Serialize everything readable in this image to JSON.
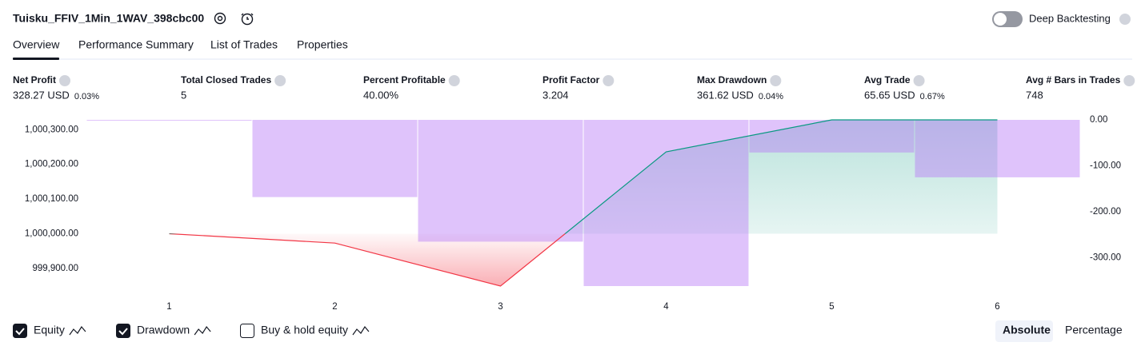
{
  "header": {
    "title": "Tuisku_FFIV_1Min_1WAV_398cbc00",
    "toggle_label": "Deep Backtesting"
  },
  "tabs": [
    "Overview",
    "Performance Summary",
    "List of Trades",
    "Properties"
  ],
  "metrics": [
    {
      "label": "Net Profit",
      "value": "328.27 USD",
      "extra": "0.03%",
      "tone": "green"
    },
    {
      "label": "Total Closed Trades",
      "value": "5",
      "tone": "plain"
    },
    {
      "label": "Percent Profitable",
      "value": "40.00%",
      "tone": "green"
    },
    {
      "label": "Profit Factor",
      "value": "3.204",
      "tone": "green"
    },
    {
      "label": "Max Drawdown",
      "value": "361.62 USD",
      "extra": "0.04%",
      "tone": "red"
    },
    {
      "label": "Avg Trade",
      "value": "65.65 USD",
      "extra": "0.67%",
      "tone": "green"
    },
    {
      "label": "Avg # Bars in Trades",
      "value": "748",
      "tone": "plain"
    }
  ],
  "chart_data": {
    "type": "line",
    "categories": [
      "1",
      "2",
      "3",
      "4",
      "5",
      "6"
    ],
    "series": [
      {
        "name": "Equity",
        "color": "#089981",
        "color_below": "#f23645",
        "baseline": 1000000,
        "values": [
          1000000,
          999973,
          999849,
          1000236,
          1000328.27,
          1000328.27
        ]
      },
      {
        "name": "Drawdown",
        "type": "bar",
        "axis": "y2",
        "color": "#b77bf6",
        "values": [
          0,
          -168,
          -265,
          -361.62,
          -71,
          -125
        ]
      }
    ],
    "ylim": [
      999849,
      1000328.27
    ],
    "yticks": [
      {
        "value": 1000300,
        "label": "1,000,300.00"
      },
      {
        "value": 1000200,
        "label": "1,000,200.00"
      },
      {
        "value": 1000100,
        "label": "1,000,100.00"
      },
      {
        "value": 1000000,
        "label": "1,000,000.00"
      },
      {
        "value": 999900,
        "label": "999,900.00"
      }
    ],
    "y2lim": [
      -361.62,
      0
    ],
    "y2ticks": [
      {
        "value": 0,
        "label": "0.00"
      },
      {
        "value": -100,
        "label": "-100.00"
      },
      {
        "value": -200,
        "label": "-200.00"
      },
      {
        "value": -300,
        "label": "-300.00"
      }
    ]
  },
  "options": [
    {
      "label": "Equity",
      "checked": true
    },
    {
      "label": "Drawdown",
      "checked": true
    },
    {
      "label": "Buy & hold equity",
      "checked": false
    }
  ],
  "modes": [
    "Absolute",
    "Percentage"
  ]
}
